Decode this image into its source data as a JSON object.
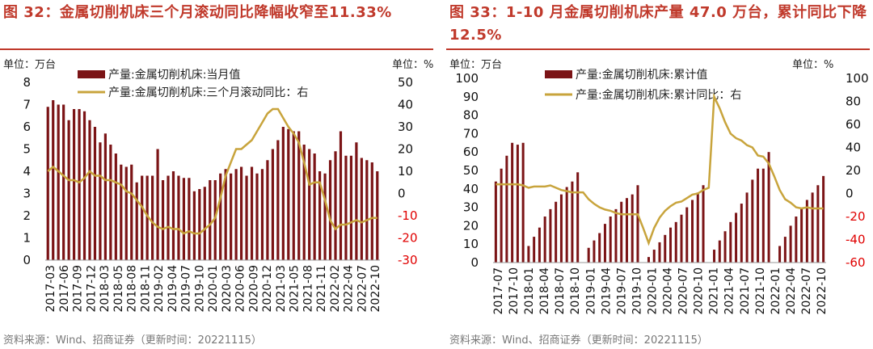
{
  "colors": {
    "title": "#c0392b",
    "bar": "#7b1416",
    "line": "#c8a43c",
    "right_axis_text": "#e00000"
  },
  "charts": [
    {
      "title": "图 32：金属切削机床三个月滚动同比降幅收窄至11.33%",
      "source": "资料来源：Wind、招商证券（更新时间：20221115）",
      "left_unit": "单位：万台",
      "right_unit": "单位：%",
      "legend_bar": "产量:金属切削机床:当月值",
      "legend_line": "产量:金属切削机床:三个月滚动同比：右",
      "x_ticks": [
        "2017-03",
        "2017-06",
        "2017-09",
        "2017-12",
        "2018-03",
        "2018-05",
        "2018-08",
        "2018-11",
        "2019-02",
        "2019-04",
        "2019-07",
        "2019-10",
        "2020-01",
        "2020-03",
        "2020-06",
        "2020-09",
        "2020-12",
        "2021-03",
        "2021-05",
        "2021-08",
        "2021-11",
        "2022-02",
        "2022-04",
        "2022-07",
        "2022-10"
      ],
      "left_ticks": [
        "0",
        "1",
        "2",
        "3",
        "4",
        "5",
        "6",
        "7",
        "8"
      ],
      "right_ticks": [
        "-30",
        "-20",
        "-10",
        "0",
        "10",
        "20",
        "30",
        "40",
        "50"
      ]
    },
    {
      "title": "图 33：1-10 月金属切削机床产量 47.0 万台，累计同比下降 12.5%",
      "source": "资料来源：Wind、招商证券（更新时间：20221115）",
      "left_unit": "单位：万台",
      "right_unit": "单位：%",
      "legend_bar": "产量:金属切削机床:累计值",
      "legend_line": "产量:金属切削机床:累计同比：右",
      "x_ticks": [
        "2017-07",
        "2017-10",
        "2018-01",
        "2018-04",
        "2018-07",
        "2018-10",
        "2019-01",
        "2019-04",
        "2019-07",
        "2019-10",
        "2020-01",
        "2020-04",
        "2020-07",
        "2020-10",
        "2021-01",
        "2021-04",
        "2021-07",
        "2021-10",
        "2022-01",
        "2022-04",
        "2022-07",
        "2022-10"
      ],
      "left_ticks": [
        "0",
        "10",
        "20",
        "30",
        "40",
        "50",
        "60",
        "70",
        "80",
        "90",
        "100"
      ],
      "right_ticks": [
        "-60",
        "-40",
        "-20",
        "0",
        "20",
        "40",
        "60",
        "80",
        "100"
      ]
    }
  ],
  "chart_data": [
    {
      "type": "bar+line",
      "title": "图 32：金属切削机床三个月滚动同比降幅收窄至11.33%",
      "ylim_left": [
        0,
        8
      ],
      "ylim_right": [
        -30,
        50
      ],
      "series": [
        {
          "name": "产量:金属切削机床:当月值",
          "type": "bar",
          "axis": "left",
          "values": [
            6.9,
            7.2,
            7.0,
            7.0,
            6.3,
            6.8,
            6.8,
            6.7,
            6.3,
            6.0,
            5.3,
            5.7,
            5.2,
            4.8,
            4.3,
            4.2,
            4.3,
            3.5,
            3.8,
            3.8,
            3.8,
            5.0,
            3.6,
            3.8,
            4.0,
            3.8,
            3.7,
            3.7,
            3.1,
            3.2,
            3.3,
            3.6,
            3.6,
            3.9,
            4.1,
            3.9,
            4.1,
            4.2,
            3.8,
            4.2,
            3.9,
            4.1,
            4.5,
            5.0,
            5.4,
            6.0,
            5.9,
            5.8,
            5.8,
            5.2,
            5.0,
            4.8,
            4.0,
            3.9,
            4.5,
            4.9,
            5.8,
            4.7,
            4.7,
            5.3,
            4.6,
            4.5,
            4.4,
            4.0
          ]
        },
        {
          "name": "产量:金属切削机床:三个月滚动同比：右",
          "type": "line",
          "axis": "right",
          "values": [
            10,
            12,
            10,
            8,
            6,
            6,
            5,
            7,
            10,
            8,
            8,
            6,
            6,
            5,
            4,
            1,
            0,
            -3,
            -6,
            -10,
            -13,
            -15,
            -16,
            -15,
            -16,
            -16,
            -18,
            -17,
            -18,
            -18,
            -16,
            -14,
            -11,
            -2,
            8,
            14,
            20,
            20,
            22,
            24,
            28,
            32,
            36,
            38,
            38,
            34,
            30,
            27,
            23,
            14,
            4,
            5,
            5,
            -3,
            -12,
            -16,
            -14,
            -14,
            -13,
            -12,
            -13,
            -12,
            -11,
            -11
          ]
        }
      ]
    },
    {
      "type": "bar+line",
      "title": "图 33：1-10 月金属切削机床产量 47.0 万台，累计同比下降 12.5%",
      "ylim_left": [
        0,
        100
      ],
      "ylim_right": [
        -60,
        100
      ],
      "series": [
        {
          "name": "产量:金属切削机床:累计值",
          "type": "bar",
          "axis": "left",
          "values": [
            44,
            51,
            58,
            65,
            64,
            65,
            9,
            14,
            19,
            25,
            29,
            33,
            37,
            41,
            44,
            49,
            null,
            8,
            12,
            16,
            21,
            25,
            29,
            33,
            35,
            37,
            42,
            null,
            3,
            7,
            11,
            15,
            19,
            22,
            26,
            30,
            34,
            38,
            42,
            null,
            7,
            12,
            17,
            22,
            27,
            32,
            38,
            45,
            51,
            51,
            60,
            null,
            9,
            14,
            20,
            25,
            29,
            34,
            38,
            42,
            47
          ]
        },
        {
          "name": "产量:金属切削机床:累计同比：右",
          "type": "line",
          "axis": "right",
          "values": [
            8,
            8,
            8,
            8,
            8,
            7,
            5,
            6,
            6,
            6,
            7,
            5,
            3,
            2,
            1,
            1,
            1,
            -5,
            -9,
            -12,
            -14,
            -15,
            -17,
            -18,
            -18,
            -18,
            -18,
            -30,
            -43,
            -30,
            -21,
            -15,
            -11,
            -8,
            -7,
            -4,
            -1,
            0,
            3,
            5,
            84,
            74,
            62,
            52,
            48,
            46,
            42,
            40,
            33,
            32,
            26,
            15,
            3,
            -5,
            -8,
            -12,
            -13,
            -12,
            -13,
            -13,
            -13
          ]
        }
      ]
    }
  ]
}
